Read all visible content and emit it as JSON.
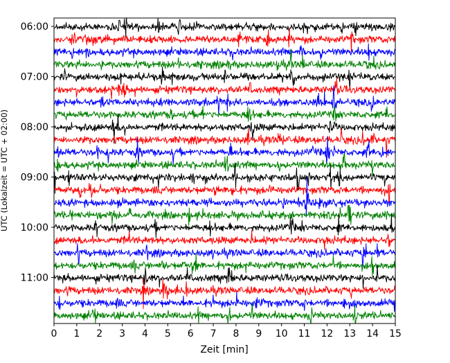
{
  "chart_data": {
    "type": "line",
    "subtype": "helicorder / seismogram drum plot",
    "title": "",
    "xlabel": "Zeit  [min]",
    "ylabel": "UTC (Lokalzeit = UTC + 02:00)",
    "xlim": [
      0,
      15
    ],
    "ylim_time": [
      "05:50",
      "11:55"
    ],
    "x_ticks": [
      0,
      1,
      2,
      3,
      4,
      5,
      6,
      7,
      8,
      9,
      10,
      11,
      12,
      13,
      14,
      15
    ],
    "x_tick_labels": [
      "0",
      "1",
      "2",
      "3",
      "4",
      "5",
      "6",
      "7",
      "8",
      "9",
      "10",
      "11",
      "12",
      "13",
      "14",
      "15"
    ],
    "y_tick_labels": [
      "06:00",
      "07:00",
      "08:00",
      "09:00",
      "10:00",
      "11:00"
    ],
    "trace_interval_minutes": 15,
    "trace_color_cycle": [
      "#000000",
      "#ff0000",
      "#0000ff",
      "#008000"
    ],
    "trace_start_times": [
      "06:00",
      "06:15",
      "06:30",
      "06:45",
      "07:00",
      "07:15",
      "07:30",
      "07:45",
      "08:00",
      "08:15",
      "08:30",
      "08:45",
      "09:00",
      "09:15",
      "09:30",
      "09:45",
      "10:00",
      "10:15",
      "10:30",
      "10:45",
      "11:00",
      "11:15",
      "11:30",
      "11:45"
    ],
    "grid": false,
    "legend": "none"
  }
}
